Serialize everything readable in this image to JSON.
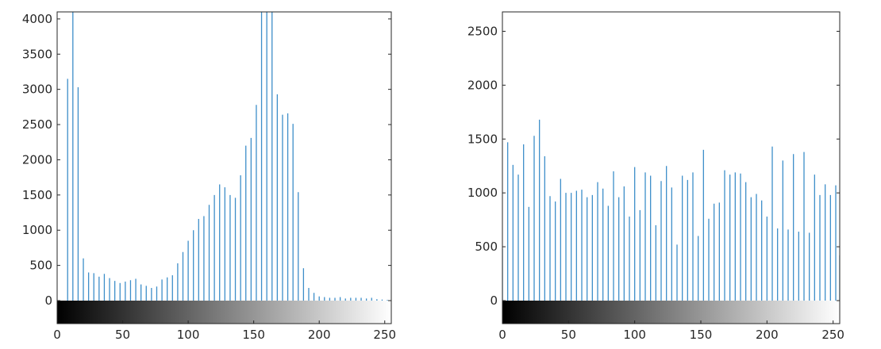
{
  "chart_data": [
    {
      "type": "bar",
      "title": "",
      "xlabel": "",
      "ylabel": "",
      "xlim": [
        0,
        255
      ],
      "ylim": [
        -300,
        4100
      ],
      "xticks": [
        0,
        50,
        100,
        150,
        200,
        250
      ],
      "yticks": [
        0,
        500,
        1000,
        1500,
        2000,
        2500,
        3000,
        3500,
        4000
      ],
      "grid": false,
      "colorbar": "grayscale 0-255 below axis",
      "bar_color": "#3d8ec9",
      "series": [
        {
          "x": [
            8,
            12,
            16,
            20,
            24,
            28,
            32,
            36,
            40,
            44,
            48,
            52,
            56,
            60,
            64,
            68,
            72,
            76,
            80,
            84,
            88,
            92,
            96,
            100,
            104,
            108,
            112,
            116,
            120,
            124,
            128,
            132,
            136,
            140,
            144,
            148,
            152,
            156,
            160,
            164,
            168,
            172,
            176,
            180,
            184,
            188,
            192,
            196,
            200,
            204,
            208,
            212,
            216,
            220,
            224,
            228,
            232,
            236,
            240,
            244,
            248,
            252
          ],
          "values": [
            3150,
            4100,
            3030,
            600,
            400,
            390,
            340,
            380,
            320,
            280,
            250,
            270,
            290,
            310,
            230,
            210,
            180,
            200,
            300,
            330,
            360,
            530,
            690,
            850,
            1000,
            1160,
            1200,
            1360,
            1500,
            1650,
            1610,
            1500,
            1460,
            1780,
            2200,
            2310,
            2780,
            4100,
            4100,
            4100,
            2930,
            2640,
            2660,
            2510,
            1540,
            460,
            180,
            110,
            60,
            50,
            40,
            40,
            50,
            30,
            40,
            40,
            40,
            30,
            40,
            20,
            15,
            10
          ]
        }
      ]
    },
    {
      "type": "bar",
      "title": "",
      "xlabel": "",
      "ylabel": "",
      "xlim": [
        0,
        255
      ],
      "ylim": [
        -200,
        2680
      ],
      "xticks": [
        0,
        50,
        100,
        150,
        200,
        250
      ],
      "yticks": [
        0,
        500,
        1000,
        1500,
        2000,
        2500
      ],
      "grid": false,
      "colorbar": "grayscale 0-255 below axis",
      "bar_color": "#3d8ec9",
      "series": [
        {
          "x": [
            0,
            4,
            8,
            12,
            16,
            20,
            24,
            28,
            32,
            36,
            40,
            44,
            48,
            52,
            56,
            60,
            64,
            68,
            72,
            76,
            80,
            84,
            88,
            92,
            96,
            100,
            104,
            108,
            112,
            116,
            120,
            124,
            128,
            132,
            136,
            140,
            144,
            148,
            152,
            156,
            160,
            164,
            168,
            172,
            176,
            180,
            184,
            188,
            192,
            196,
            200,
            204,
            208,
            212,
            216,
            220,
            224,
            228,
            232,
            236,
            240,
            244,
            248,
            252,
            255
          ],
          "values": [
            480,
            1470,
            1260,
            1170,
            1450,
            870,
            1530,
            1680,
            1340,
            970,
            920,
            1130,
            1000,
            1000,
            1020,
            1030,
            960,
            980,
            1100,
            1040,
            880,
            1200,
            960,
            1060,
            780,
            1240,
            840,
            1190,
            1160,
            700,
            1110,
            1250,
            1050,
            520,
            1160,
            1120,
            1190,
            600,
            1400,
            760,
            900,
            910,
            1210,
            1170,
            1190,
            1180,
            1100,
            960,
            990,
            930,
            780,
            1430,
            670,
            1300,
            660,
            1360,
            640,
            1380,
            630,
            1170,
            980,
            1080,
            980,
            1070,
            420
          ]
        }
      ]
    }
  ]
}
